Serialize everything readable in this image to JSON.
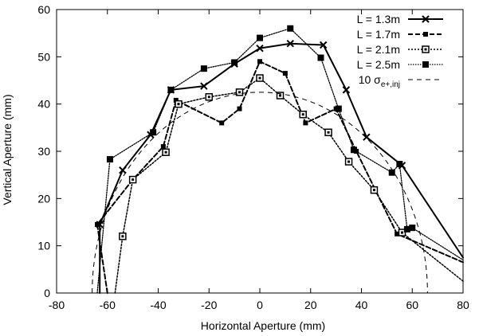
{
  "chart_data": {
    "type": "line",
    "title": "",
    "xlabel": "Horizontal Aperture (mm)",
    "ylabel": "Vertical Aperture (mm)",
    "xlim": [
      -80,
      80
    ],
    "ylim": [
      0,
      60
    ],
    "xticks": [
      -80,
      -60,
      -40,
      -20,
      0,
      20,
      40,
      60,
      80
    ],
    "yticks": [
      0,
      10,
      20,
      30,
      40,
      50,
      60
    ],
    "grid": false,
    "legend_position": "top-right",
    "series": [
      {
        "name": "L = 1.3m",
        "color": "#000000",
        "style": "solid",
        "marker": "x",
        "points": [
          [
            -63,
            0
          ],
          [
            -63,
            14.5
          ],
          [
            -54,
            26
          ],
          [
            -43,
            33.5
          ],
          [
            -35,
            43
          ],
          [
            -22,
            43.8
          ],
          [
            -10,
            48.5
          ],
          [
            0,
            51.8
          ],
          [
            12,
            52.8
          ],
          [
            25,
            52.5
          ],
          [
            34,
            43
          ],
          [
            42,
            33
          ],
          [
            56,
            27
          ],
          [
            80,
            7.5
          ]
        ]
      },
      {
        "name": "L = 1.7m",
        "color": "#000000",
        "style": "dashed",
        "marker": "filled-small",
        "points": [
          [
            -60,
            0
          ],
          [
            -64,
            14.5
          ],
          [
            -50,
            24
          ],
          [
            -38,
            31
          ],
          [
            -33,
            40.8
          ],
          [
            -15,
            36
          ],
          [
            -8,
            39
          ],
          [
            0,
            49
          ],
          [
            10,
            46.5
          ],
          [
            18,
            36
          ],
          [
            30,
            39
          ],
          [
            38,
            30
          ],
          [
            54,
            12.5
          ],
          [
            80,
            6.5
          ]
        ]
      },
      {
        "name": "L = 2.1m",
        "color": "#000000",
        "style": "dotted",
        "marker": "open-square",
        "points": [
          [
            -57,
            0
          ],
          [
            -54,
            12
          ],
          [
            -50,
            24
          ],
          [
            -37,
            29.8
          ],
          [
            -32,
            40
          ],
          [
            -20,
            41.5
          ],
          [
            -8,
            42.5
          ],
          [
            0,
            45.5
          ],
          [
            8,
            41.8
          ],
          [
            17,
            37.8
          ],
          [
            27,
            34
          ],
          [
            35,
            27.8
          ],
          [
            45,
            21.8
          ],
          [
            56,
            12.8
          ],
          [
            80,
            2.5
          ]
        ]
      },
      {
        "name": "L = 2.5m",
        "color": "#000000",
        "style": "fine-dotted",
        "marker": "filled-square",
        "points": [
          [
            -64,
            0
          ],
          [
            -59,
            28.3
          ],
          [
            -42,
            34
          ],
          [
            -35,
            43
          ],
          [
            -22,
            47.5
          ],
          [
            -10,
            48.8
          ],
          [
            0,
            54
          ],
          [
            12,
            56
          ],
          [
            24,
            49.8
          ],
          [
            31,
            39
          ],
          [
            37,
            30.3
          ],
          [
            52,
            25.5
          ],
          [
            55,
            27.3
          ],
          [
            58,
            13.5
          ],
          [
            60,
            13.8
          ],
          [
            80,
            7
          ]
        ]
      },
      {
        "name": "10 σe+,inj",
        "legend_label_main": "10 σ",
        "legend_label_sub": "e+,inj",
        "color": "#000000",
        "style": "thin-dashed",
        "marker": "none",
        "ellipse": {
          "center_x": 0,
          "half_width": 66,
          "half_height": 42.5
        }
      }
    ]
  }
}
